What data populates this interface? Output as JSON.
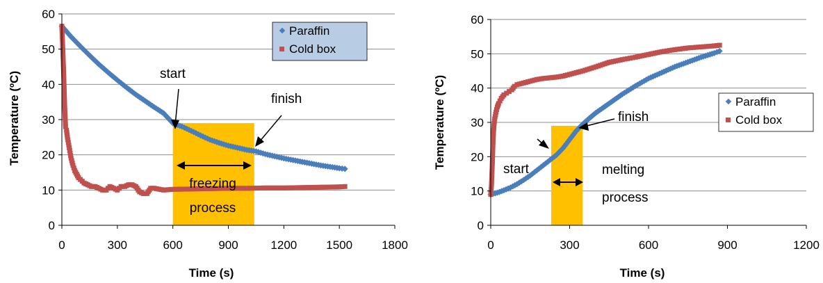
{
  "chart_data": [
    {
      "type": "scatter",
      "title": "",
      "xlabel": "Time (s)",
      "ylabel": "Temperature (ºC)",
      "xlim": [
        0,
        1800
      ],
      "ylim": [
        0,
        60
      ],
      "xticks": [
        "0",
        "300",
        "600",
        "900",
        "1200",
        "1500",
        "1800"
      ],
      "yticks": [
        "0",
        "10",
        "20",
        "30",
        "40",
        "50",
        "60"
      ],
      "grid": "horizontal",
      "legend_position": "top-right",
      "series": [
        {
          "name": "Paraffin",
          "color": "#4a7ebb",
          "marker": "diamond",
          "x": [
            0,
            50,
            100,
            150,
            200,
            250,
            300,
            350,
            400,
            450,
            500,
            550,
            600,
            650,
            700,
            750,
            800,
            850,
            900,
            950,
            1000,
            1050,
            1100,
            1150,
            1200,
            1250,
            1300,
            1350,
            1400,
            1450,
            1500,
            1530
          ],
          "y": [
            56.5,
            53.5,
            50.8,
            48.2,
            45.7,
            43.4,
            41.2,
            39.1,
            37.1,
            35.3,
            33.5,
            31.8,
            29,
            28,
            26.8,
            25.5,
            24.3,
            23.4,
            22.6,
            22,
            21.4,
            21,
            20.2,
            19.6,
            19,
            18.5,
            18,
            17.5,
            17,
            16.6,
            16.2,
            16
          ]
        },
        {
          "name": "Cold box",
          "color": "#c0504d",
          "marker": "square",
          "x": [
            0,
            5,
            10,
            15,
            20,
            25,
            30,
            40,
            50,
            60,
            70,
            80,
            90,
            100,
            120,
            140,
            160,
            180,
            200,
            220,
            240,
            260,
            280,
            300,
            320,
            340,
            360,
            380,
            400,
            420,
            440,
            460,
            480,
            500,
            550,
            600,
            700,
            800,
            900,
            1000,
            1100,
            1200,
            1300,
            1400,
            1500,
            1530
          ],
          "y": [
            56.5,
            50,
            43,
            34,
            28,
            27,
            25,
            22,
            19,
            17,
            15.5,
            14.5,
            13.5,
            13,
            12,
            11.5,
            11,
            11,
            10.5,
            10,
            10,
            11,
            10.5,
            10,
            11,
            11,
            11.5,
            11.5,
            11,
            9.5,
            9,
            9,
            10.5,
            10.5,
            10,
            10.2,
            10.3,
            10.4,
            10.5,
            10.5,
            10.6,
            10.6,
            10.7,
            10.8,
            10.9,
            11
          ]
        }
      ],
      "annotations": [
        {
          "text": "start"
        },
        {
          "text": "finish"
        },
        {
          "text": "freezing"
        },
        {
          "text": "process"
        }
      ],
      "highlight_box": {
        "x_range": [
          600,
          1040
        ],
        "y_range": [
          0,
          29
        ],
        "color": "#ffc000"
      }
    },
    {
      "type": "scatter",
      "title": "",
      "xlabel": "Time (s)",
      "ylabel": "Temperature (ºC)",
      "xlim": [
        0,
        1200
      ],
      "ylim": [
        0,
        60
      ],
      "xticks": [
        "0",
        "300",
        "600",
        "900",
        "1200"
      ],
      "yticks": [
        "0",
        "10",
        "20",
        "30",
        "40",
        "50",
        "60"
      ],
      "grid": "horizontal",
      "legend_position": "right",
      "series": [
        {
          "name": "Paraffin",
          "color": "#4a7ebb",
          "marker": "diamond",
          "x": [
            0,
            25,
            50,
            75,
            100,
            125,
            150,
            175,
            200,
            225,
            250,
            275,
            300,
            325,
            350,
            375,
            400,
            450,
            500,
            550,
            600,
            650,
            700,
            750,
            800,
            850,
            870
          ],
          "y": [
            9,
            9.5,
            10.2,
            11,
            12,
            13.2,
            14.5,
            16,
            17.5,
            19,
            20.5,
            22.5,
            25,
            27.5,
            29.5,
            31.2,
            32.8,
            35.5,
            38.2,
            40.6,
            42.8,
            44.5,
            46.2,
            47.6,
            49,
            50.2,
            50.8
          ]
        },
        {
          "name": "Cold box",
          "color": "#c0504d",
          "marker": "square",
          "x": [
            0,
            3,
            6,
            9,
            12,
            15,
            20,
            25,
            30,
            40,
            50,
            60,
            70,
            80,
            90,
            100,
            125,
            150,
            175,
            200,
            225,
            250,
            275,
            300,
            350,
            400,
            450,
            500,
            550,
            600,
            650,
            700,
            750,
            800,
            850,
            870
          ],
          "y": [
            9,
            12,
            18,
            25,
            29,
            31,
            33,
            34.5,
            35.5,
            37,
            38,
            38.5,
            39,
            39.5,
            40.5,
            41,
            41.5,
            42,
            42.5,
            42.8,
            43,
            43.2,
            43.5,
            44,
            45,
            46.2,
            47.5,
            48.3,
            49,
            49.8,
            50.6,
            51.2,
            51.7,
            52,
            52.3,
            52.5
          ]
        }
      ],
      "annotations": [
        {
          "text": "start"
        },
        {
          "text": "finish"
        },
        {
          "text": "melting"
        },
        {
          "text": "process"
        }
      ],
      "highlight_box": {
        "x_range": [
          230,
          350
        ],
        "y_range": [
          0,
          29
        ],
        "color": "#ffc000"
      }
    }
  ]
}
